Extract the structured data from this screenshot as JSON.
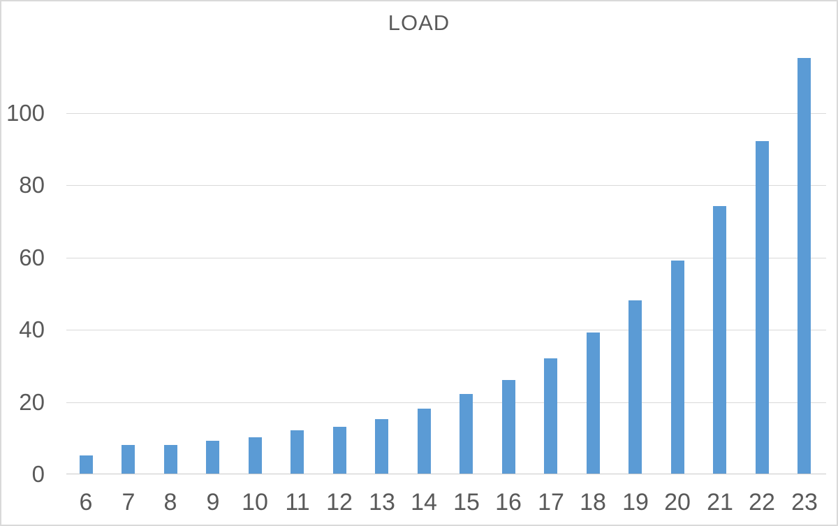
{
  "chart_data": {
    "type": "bar",
    "title": "LOAD",
    "categories": [
      "6",
      "7",
      "8",
      "9",
      "10",
      "11",
      "12",
      "13",
      "14",
      "15",
      "16",
      "17",
      "18",
      "19",
      "20",
      "21",
      "22",
      "23"
    ],
    "values": [
      5,
      8,
      8,
      9,
      10,
      12,
      13,
      15,
      18,
      22,
      26,
      32,
      39,
      48,
      59,
      74,
      92,
      115
    ],
    "xlabel": "",
    "ylabel": "",
    "yticks": [
      0,
      20,
      40,
      60,
      80,
      100
    ],
    "ylim": [
      0,
      120
    ],
    "grid": true,
    "legend": "none",
    "colors": {
      "bar": "#5B9BD5",
      "gridline": "#D9D9D9",
      "axis_line": "#C9C9C9",
      "text": "#595959",
      "background": "#FFFFFF",
      "border": "#D9D9D9"
    }
  }
}
